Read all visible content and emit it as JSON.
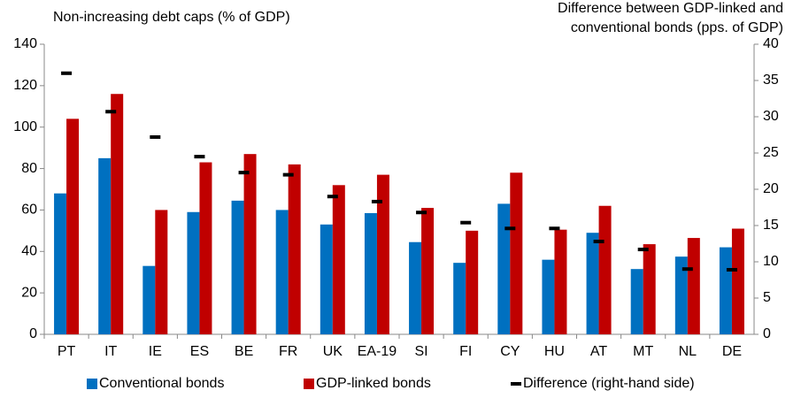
{
  "chart_data": {
    "type": "bar",
    "y_label": "Non-increasing debt caps (% of GDP)",
    "y2_label": [
      "Difference between GDP-linked and",
      "conventional bonds (pps. of GDP)"
    ],
    "categories": [
      "PT",
      "IT",
      "IE",
      "ES",
      "BE",
      "FR",
      "UK",
      "EA-19",
      "SI",
      "FI",
      "CY",
      "HU",
      "AT",
      "MT",
      "NL",
      "DE"
    ],
    "series": [
      {
        "name": "Conventional bonds",
        "color": "#0070c0",
        "values": [
          68,
          85,
          33,
          59,
          64.5,
          60,
          53,
          58.5,
          44.5,
          34.5,
          63,
          36,
          49,
          31.5,
          37.5,
          42
        ]
      },
      {
        "name": "GDP-linked bonds",
        "color": "#c00000",
        "values": [
          104,
          116,
          60,
          83,
          87,
          82,
          72,
          77,
          61,
          50,
          78,
          50.5,
          62,
          43.5,
          46.5,
          51
        ]
      },
      {
        "name": "Difference (right-hand side)",
        "color": "#000000",
        "axis": "y2",
        "marker": "dash",
        "values": [
          36,
          30.7,
          27.2,
          24.5,
          22.3,
          22,
          19,
          18.3,
          16.8,
          15.4,
          14.6,
          14.6,
          12.8,
          11.7,
          9,
          8.9
        ]
      }
    ],
    "ylim": [
      0,
      140
    ],
    "yticks": [
      0,
      20,
      40,
      60,
      80,
      100,
      120,
      140
    ],
    "y2lim": [
      0,
      40
    ],
    "y2ticks": [
      0,
      5,
      10,
      15,
      20,
      25,
      30,
      35,
      40
    ],
    "grid": false,
    "legend": "bottom"
  }
}
